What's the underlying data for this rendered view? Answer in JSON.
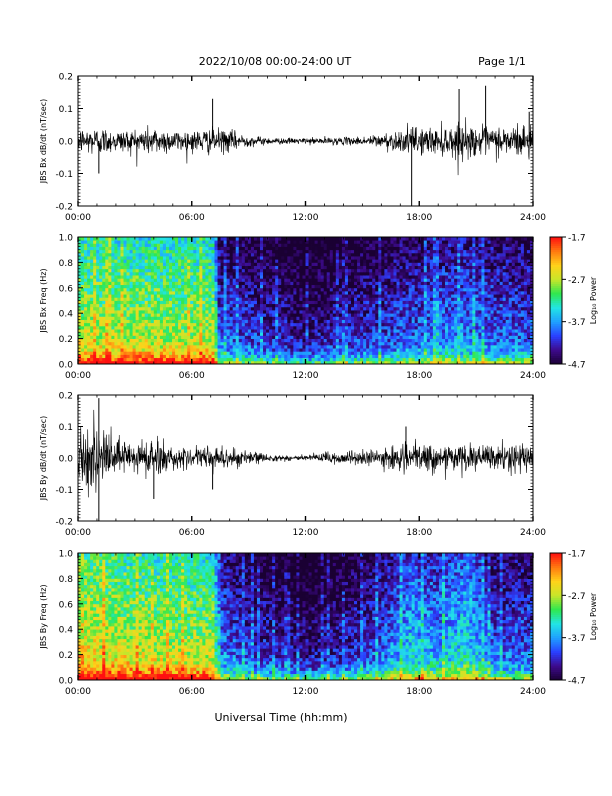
{
  "header": {
    "title": "2022/10/08  00:00-24:00 UT",
    "page": "Page 1/1"
  },
  "footer": {
    "xlabel": "Universal Time (hh:mm)"
  },
  "colors": {
    "trace": "#000000",
    "colormap": [
      "#1a0033",
      "#3d0a8c",
      "#2a40ff",
      "#1fa0ff",
      "#22e5e5",
      "#2ee84f",
      "#c8e62a",
      "#ffd21a",
      "#ff7a10",
      "#ff1010"
    ]
  },
  "chart_data": [
    {
      "type": "line",
      "ylabel": "JBS Bx dB/dt (nT/sec)",
      "ylim": [
        -0.2,
        0.2
      ],
      "yticks": [
        -0.2,
        -0.1,
        0.0,
        0.1,
        0.2
      ],
      "ytick_labels": [
        "-0.2",
        "-0.1",
        "0.0",
        "0.1",
        "0.2"
      ],
      "xlim": [
        0,
        24
      ],
      "xticks": [
        0,
        6,
        12,
        18,
        24
      ],
      "xtick_labels": [
        "00:00",
        "06:00",
        "12:00",
        "18:00",
        "24:00"
      ],
      "envelope": [
        [
          0,
          0.035
        ],
        [
          1,
          0.04
        ],
        [
          2,
          0.03
        ],
        [
          3,
          0.035
        ],
        [
          4,
          0.04
        ],
        [
          5,
          0.03
        ],
        [
          6,
          0.03
        ],
        [
          7,
          0.035
        ],
        [
          8,
          0.03
        ],
        [
          9,
          0.015
        ],
        [
          10,
          0.01
        ],
        [
          11,
          0.008
        ],
        [
          12,
          0.008
        ],
        [
          13,
          0.01
        ],
        [
          14,
          0.01
        ],
        [
          15,
          0.012
        ],
        [
          16,
          0.02
        ],
        [
          17,
          0.03
        ],
        [
          18,
          0.04
        ],
        [
          19,
          0.035
        ],
        [
          20,
          0.05
        ],
        [
          21,
          0.04
        ],
        [
          22,
          0.04
        ],
        [
          23,
          0.045
        ],
        [
          24,
          0.05
        ]
      ],
      "spikes": [
        {
          "x": 7.1,
          "y": 0.13
        },
        {
          "x": 20.1,
          "y": 0.16
        },
        {
          "x": 21.5,
          "y": 0.17
        },
        {
          "x": 23.8,
          "y": 0.09
        },
        {
          "x": 17.6,
          "y": -0.2
        },
        {
          "x": 1.1,
          "y": -0.1
        }
      ]
    },
    {
      "type": "heatmap",
      "ylabel": "JBS Bx Freq (Hz)",
      "ylim": [
        0.0,
        1.0
      ],
      "yticks": [
        0.0,
        0.2,
        0.4,
        0.6,
        0.8,
        1.0
      ],
      "ytick_labels": [
        "0.0",
        "0.2",
        "0.4",
        "0.6",
        "0.8",
        "1.0"
      ],
      "xlim": [
        0,
        24
      ],
      "xticks": [
        0,
        6,
        12,
        18,
        24
      ],
      "xtick_labels": [
        "00:00",
        "06:00",
        "12:00",
        "18:00",
        "24:00"
      ],
      "colorbar": {
        "label": "Log₁₀ Power",
        "range": [
          -4.7,
          -1.7
        ],
        "ticks": [
          -1.7,
          -2.7,
          -3.7,
          -4.7
        ],
        "tick_labels": [
          "-1.7",
          "-2.7",
          "-3.7",
          "-4.7"
        ]
      },
      "activity": [
        [
          0,
          0.72
        ],
        [
          2,
          0.7
        ],
        [
          4,
          0.7
        ],
        [
          6,
          0.68
        ],
        [
          7.2,
          0.7
        ],
        [
          7.4,
          0.3
        ],
        [
          9,
          0.25
        ],
        [
          12,
          0.15
        ],
        [
          14,
          0.2
        ],
        [
          16,
          0.25
        ],
        [
          18,
          0.3
        ],
        [
          20,
          0.35
        ],
        [
          22,
          0.3
        ],
        [
          24,
          0.28
        ]
      ]
    },
    {
      "type": "line",
      "ylabel": "JBS By dB/dt (nT/sec)",
      "ylim": [
        -0.2,
        0.2
      ],
      "yticks": [
        -0.2,
        -0.1,
        0.0,
        0.1,
        0.2
      ],
      "ytick_labels": [
        "-0.2",
        "-0.1",
        "0.0",
        "0.1",
        "0.2"
      ],
      "xlim": [
        0,
        24
      ],
      "xticks": [
        0,
        6,
        12,
        18,
        24
      ],
      "xtick_labels": [
        "00:00",
        "06:00",
        "12:00",
        "18:00",
        "24:00"
      ],
      "envelope": [
        [
          0,
          0.06
        ],
        [
          1,
          0.08
        ],
        [
          2,
          0.06
        ],
        [
          3,
          0.05
        ],
        [
          4,
          0.06
        ],
        [
          5,
          0.03
        ],
        [
          6,
          0.02
        ],
        [
          7,
          0.04
        ],
        [
          8,
          0.03
        ],
        [
          9,
          0.02
        ],
        [
          10,
          0.01
        ],
        [
          11,
          0.008
        ],
        [
          12,
          0.01
        ],
        [
          13,
          0.015
        ],
        [
          14,
          0.02
        ],
        [
          15,
          0.02
        ],
        [
          16,
          0.025
        ],
        [
          17,
          0.035
        ],
        [
          18,
          0.04
        ],
        [
          19,
          0.035
        ],
        [
          20,
          0.04
        ],
        [
          21,
          0.035
        ],
        [
          22,
          0.035
        ],
        [
          23,
          0.04
        ],
        [
          24,
          0.04
        ]
      ],
      "spikes": [
        {
          "x": 1.1,
          "y": 0.19
        },
        {
          "x": 1.1,
          "y": -0.2
        },
        {
          "x": 4.0,
          "y": -0.13
        },
        {
          "x": 7.1,
          "y": -0.1
        },
        {
          "x": 17.3,
          "y": 0.1
        },
        {
          "x": 0.5,
          "y": -0.08
        }
      ]
    },
    {
      "type": "heatmap",
      "ylabel": "JBS By Freq (Hz)",
      "ylim": [
        0.0,
        1.0
      ],
      "yticks": [
        0.0,
        0.2,
        0.4,
        0.6,
        0.8,
        1.0
      ],
      "ytick_labels": [
        "0.0",
        "0.2",
        "0.4",
        "0.6",
        "0.8",
        "1.0"
      ],
      "xlim": [
        0,
        24
      ],
      "xticks": [
        0,
        6,
        12,
        18,
        24
      ],
      "xtick_labels": [
        "00:00",
        "06:00",
        "12:00",
        "18:00",
        "24:00"
      ],
      "colorbar": {
        "label": "Log₁₀ Power",
        "range": [
          -4.7,
          -1.7
        ],
        "ticks": [
          -1.7,
          -2.7,
          -3.7,
          -4.7
        ],
        "tick_labels": [
          "-1.7",
          "-2.7",
          "-3.7",
          "-4.7"
        ]
      },
      "activity": [
        [
          0,
          0.8
        ],
        [
          2,
          0.75
        ],
        [
          4,
          0.72
        ],
        [
          6,
          0.7
        ],
        [
          7.2,
          0.7
        ],
        [
          7.4,
          0.35
        ],
        [
          9,
          0.25
        ],
        [
          12,
          0.15
        ],
        [
          14,
          0.2
        ],
        [
          16,
          0.3
        ],
        [
          17.5,
          0.45
        ],
        [
          19,
          0.4
        ],
        [
          20.5,
          0.5
        ],
        [
          22,
          0.3
        ],
        [
          24,
          0.3
        ]
      ]
    }
  ]
}
